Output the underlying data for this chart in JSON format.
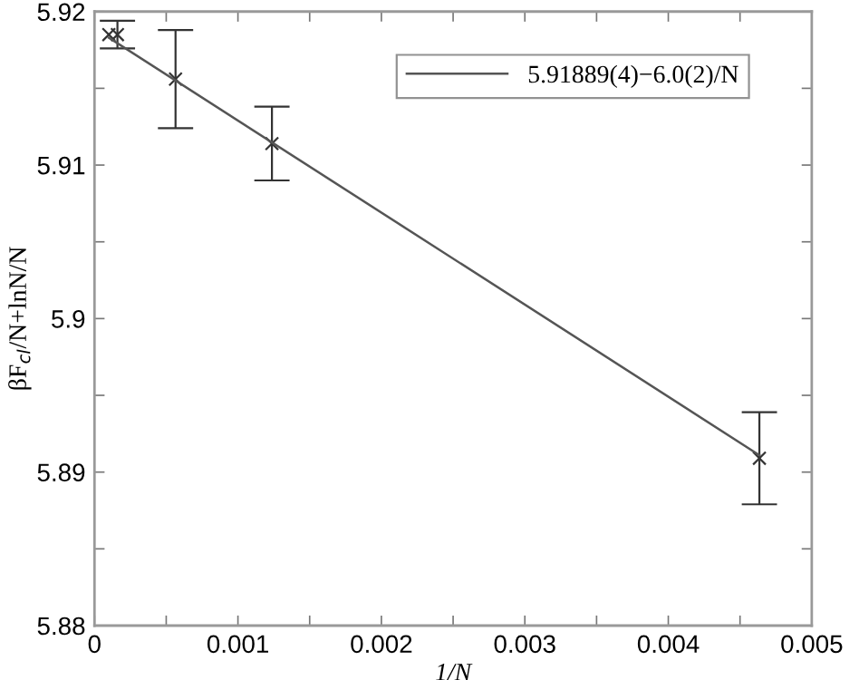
{
  "chart_data": {
    "type": "scatter",
    "xlabel": "1/N",
    "ylabel": "βF$_{cl}$/N+lnN/N",
    "series": [
      {
        "color": "#333333",
        "x": [
          0.0001,
          0.00016,
          0.000565,
          0.001237,
          0.004635
        ],
        "values": [
          5.9185,
          5.9185,
          5.9156,
          5.9114,
          5.8909
        ],
        "errors": [
          null,
          0.0009,
          0.0032,
          0.0024,
          0.003
        ]
      },
      {
        "type": "line",
        "name": "5.91889(4)−6.0(2)/N",
        "color": "#555555",
        "marker": "none",
        "x": [
          0.0001,
          0.004635
        ],
        "values": [
          5.9183,
          5.8911
        ]
      }
    ],
    "xlim": [
      0,
      0.005
    ],
    "ylim": [
      5.88,
      5.92
    ],
    "xticks": [
      0,
      {
        "value": 0.0005,
        "label": null
      },
      0.001,
      {
        "value": 0.0015,
        "label": null
      },
      0.002,
      {
        "value": 0.0025,
        "label": null
      },
      0.003,
      {
        "value": 0.0035,
        "label": null
      },
      0.004,
      {
        "value": 0.0045,
        "label": null
      },
      0.005
    ],
    "yticks": [
      5.88,
      {
        "value": 5.885,
        "label": null
      },
      5.89,
      {
        "value": 5.895,
        "label": null
      },
      5.9,
      {
        "value": 5.905,
        "label": null
      },
      5.91,
      {
        "value": 5.915,
        "label": null
      },
      5.92
    ],
    "marker": "cross",
    "line_style": "solid",
    "legend": "top right",
    "grid": false
  }
}
